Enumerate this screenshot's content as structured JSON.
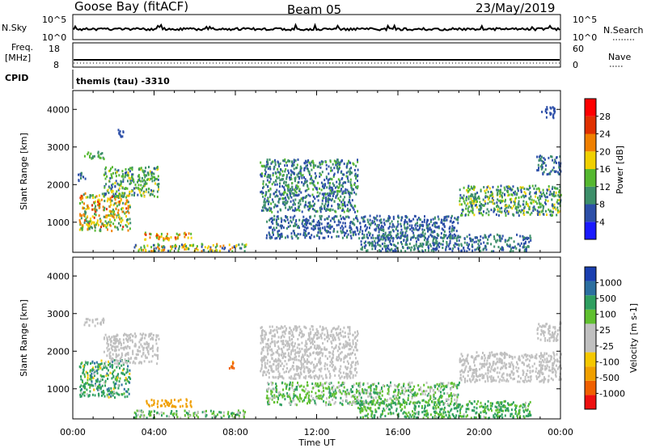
{
  "header": {
    "station": "Goose Bay (fitACF)",
    "beam": "Beam 05",
    "date": "23/May/2019"
  },
  "top_panels": {
    "nsky_label": "N.Sky",
    "nsky_ticks": [
      "10^5",
      "10^0"
    ],
    "nsearch_label": "N.Search",
    "nsearch_ticks": [
      "10^5",
      "10^0"
    ],
    "freq_label": "Freq.",
    "freq_unit": "[MHz]",
    "freq_ticks": [
      "18",
      "8"
    ],
    "nave_label": "Nave",
    "nave_ticks": [
      "60",
      "0"
    ],
    "cpid_label": "CPID",
    "cpid_text": "themis (tau) -3310"
  },
  "colors": {
    "power_scale": [
      "#1a1aff",
      "#2d4fa8",
      "#3d8f6a",
      "#55b830",
      "#f0d000",
      "#f08000",
      "#e03000",
      "#ff0000"
    ],
    "velocity_scale": [
      "#ee1010",
      "#f06000",
      "#f0a000",
      "#f5c800",
      "#c0c0c0",
      "#c0c0c0",
      "#60c030",
      "#2f9f60",
      "#2c6fa0",
      "#1a3fb0"
    ],
    "ground_scatter": "#bdbdbd"
  },
  "chart_data": [
    {
      "type": "heatmap",
      "panel": "power",
      "ylabel": "Slant Range [km]",
      "xlabel": "",
      "yticks": [
        "1000",
        "2000",
        "3000",
        "4000"
      ],
      "ylim": [
        200,
        4500
      ],
      "xlim_hours": [
        0,
        24
      ],
      "colorbar_label": "Power [dB]",
      "colorbar_ticks": [
        "4",
        "8",
        "12",
        "16",
        "20",
        "24",
        "28"
      ],
      "clim": [
        0,
        32
      ],
      "regions": [
        {
          "t0": 0.3,
          "t1": 2.8,
          "r0": 800,
          "r1": 1800,
          "v0": 8,
          "v1": 26
        },
        {
          "t0": 0.5,
          "t1": 1.5,
          "r0": 2700,
          "r1": 2900,
          "v0": 8,
          "v1": 16
        },
        {
          "t0": 0.2,
          "t1": 0.6,
          "r0": 2100,
          "r1": 2400,
          "v0": 4,
          "v1": 10
        },
        {
          "t0": 1.5,
          "t1": 4.2,
          "r0": 1700,
          "r1": 2500,
          "v0": 6,
          "v1": 18
        },
        {
          "t0": 3.5,
          "t1": 5.8,
          "r0": 550,
          "r1": 750,
          "v0": 12,
          "v1": 26
        },
        {
          "t0": 3.0,
          "t1": 8.5,
          "r0": 250,
          "r1": 450,
          "v0": 4,
          "v1": 24
        },
        {
          "t0": 9.2,
          "t1": 14.0,
          "r0": 1300,
          "r1": 2700,
          "v0": 4,
          "v1": 14
        },
        {
          "t0": 9.5,
          "t1": 19.0,
          "r0": 600,
          "r1": 1200,
          "v0": 4,
          "v1": 10
        },
        {
          "t0": 14.0,
          "t1": 22.5,
          "r0": 250,
          "r1": 700,
          "v0": 4,
          "v1": 12
        },
        {
          "t0": 19.0,
          "t1": 24.0,
          "r0": 1200,
          "r1": 2000,
          "v0": 6,
          "v1": 18
        },
        {
          "t0": 22.8,
          "t1": 24.0,
          "r0": 2300,
          "r1": 2800,
          "v0": 4,
          "v1": 10
        },
        {
          "t0": 23.0,
          "t1": 23.7,
          "r0": 3800,
          "r1": 4100,
          "v0": 4,
          "v1": 8
        },
        {
          "t0": 2.2,
          "t1": 2.5,
          "r0": 3300,
          "r1": 3500,
          "v0": 4,
          "v1": 8
        }
      ]
    },
    {
      "type": "heatmap",
      "panel": "velocity",
      "ylabel": "Slant Range [km]",
      "xlabel": "Time UT",
      "yticks": [
        "1000",
        "2000",
        "3000",
        "4000"
      ],
      "xticks": [
        "00:00",
        "04:00",
        "08:00",
        "12:00",
        "16:00",
        "20:00",
        "00:00"
      ],
      "ylim": [
        200,
        4500
      ],
      "xlim_hours": [
        0,
        24
      ],
      "colorbar_label": "Velocity [m s-1]",
      "colorbar_ticks": [
        "-1000",
        "-500",
        "-100",
        "-25",
        "25",
        "100",
        "500",
        "1000"
      ],
      "clim": [
        -1200,
        1200
      ],
      "regions": [
        {
          "t0": 0.3,
          "t1": 2.8,
          "r0": 800,
          "r1": 1800,
          "v0": -80,
          "v1": 600
        },
        {
          "t0": 0.5,
          "t1": 1.5,
          "r0": 2700,
          "r1": 2900,
          "v0": -20,
          "v1": 20
        },
        {
          "t0": 1.5,
          "t1": 4.2,
          "r0": 1700,
          "r1": 2500,
          "v0": -20,
          "v1": 20
        },
        {
          "t0": 3.5,
          "t1": 5.8,
          "r0": 550,
          "r1": 750,
          "v0": -300,
          "v1": -120
        },
        {
          "t0": 3.0,
          "t1": 8.5,
          "r0": 250,
          "r1": 450,
          "v0": -20,
          "v1": 150
        },
        {
          "t0": 9.2,
          "t1": 14.0,
          "r0": 1300,
          "r1": 2700,
          "v0": -20,
          "v1": 20
        },
        {
          "t0": 9.5,
          "t1": 19.0,
          "r0": 600,
          "r1": 1200,
          "v0": -20,
          "v1": 150
        },
        {
          "t0": 14.0,
          "t1": 22.5,
          "r0": 250,
          "r1": 700,
          "v0": 20,
          "v1": 200
        },
        {
          "t0": 19.0,
          "t1": 24.0,
          "r0": 1200,
          "r1": 2000,
          "v0": -20,
          "v1": 20
        },
        {
          "t0": 22.8,
          "t1": 24.0,
          "r0": 2300,
          "r1": 2800,
          "v0": -20,
          "v1": 20
        },
        {
          "t0": 7.6,
          "t1": 7.9,
          "r0": 1550,
          "r1": 1750,
          "v0": -900,
          "v1": -400
        }
      ]
    }
  ]
}
